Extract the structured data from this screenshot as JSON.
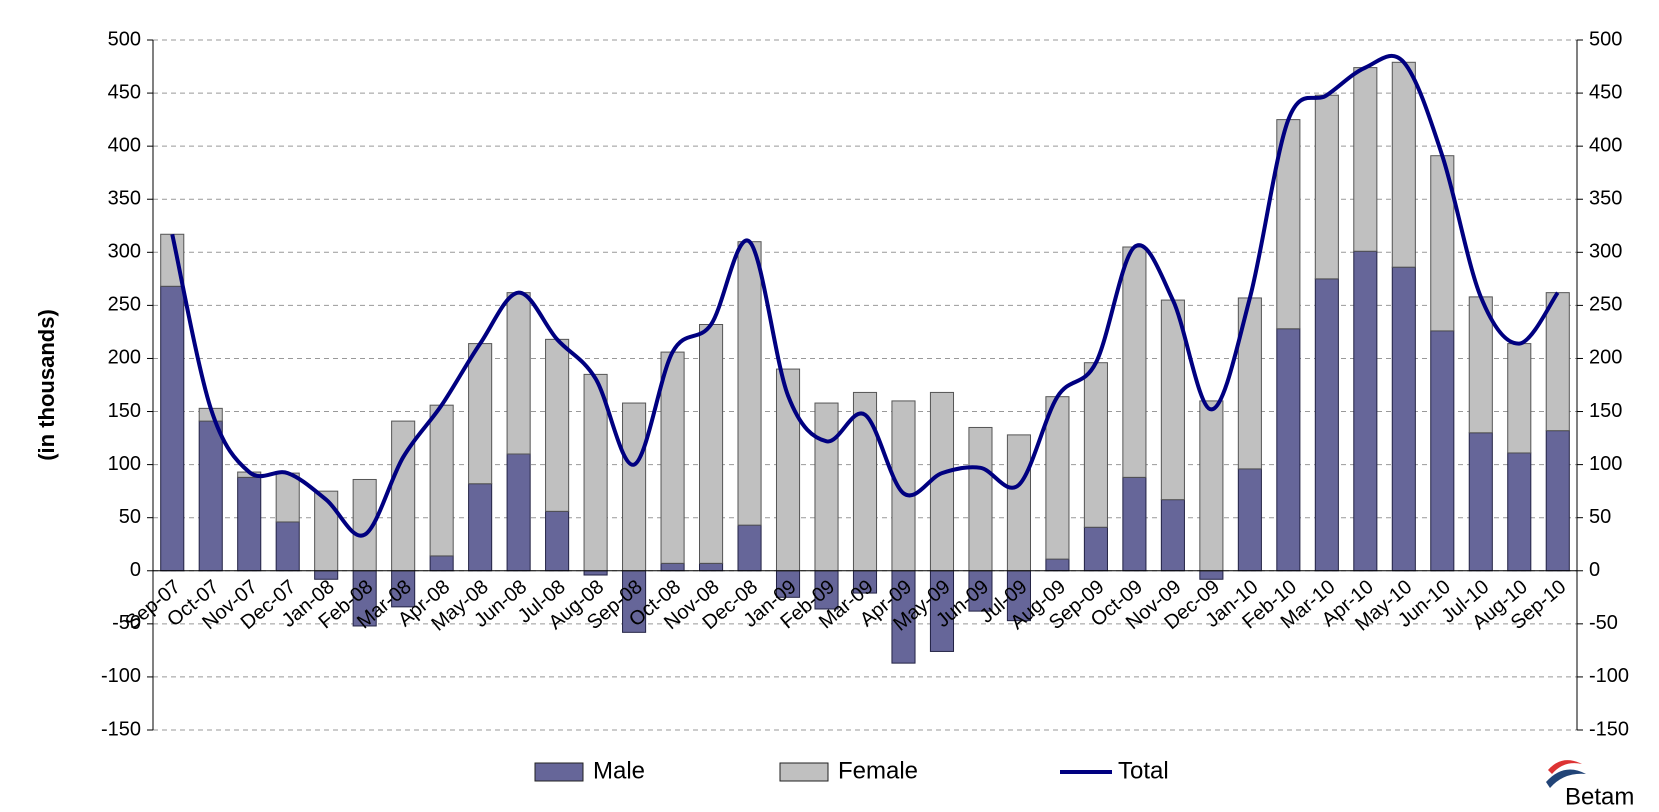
{
  "chart_data": {
    "type": "bar",
    "stacked": true,
    "y_label": "(in thousands)",
    "categories": [
      "Sep-07",
      "Oct-07",
      "Nov-07",
      "Dec-07",
      "Jan-08",
      "Feb-08",
      "Mar-08",
      "Apr-08",
      "May-08",
      "Jun-08",
      "Jul-08",
      "Aug-08",
      "Sep-08",
      "Oct-08",
      "Nov-08",
      "Dec-08",
      "Jan-09",
      "Feb-09",
      "Mar-09",
      "Apr-09",
      "May-09",
      "Jun-09",
      "Jul-09",
      "Aug-09",
      "Sep-09",
      "Oct-09",
      "Nov-09",
      "Dec-09",
      "Jan-10",
      "Feb-10",
      "Mar-10",
      "Apr-10",
      "May-10",
      "Jun-10",
      "Jul-10",
      "Aug-10",
      "Sep-10"
    ],
    "series": [
      {
        "name": "Male",
        "type": "bar",
        "color": "#666699",
        "values": [
          268,
          141,
          88,
          46,
          -8,
          -52,
          -34,
          14,
          82,
          110,
          56,
          -4,
          -58,
          7,
          7,
          43,
          -25,
          -36,
          -21,
          -87,
          -76,
          -38,
          -47,
          11,
          41,
          88,
          67,
          -8,
          96,
          228,
          275,
          301,
          286,
          226,
          130,
          111,
          132
        ]
      },
      {
        "name": "Female",
        "type": "bar",
        "color": "#c0c0c0",
        "values": [
          49,
          12,
          5,
          46,
          75,
          86,
          141,
          142,
          132,
          152,
          162,
          185,
          158,
          199,
          225,
          267,
          190,
          158,
          168,
          160,
          168,
          135,
          128,
          153,
          155,
          217,
          188,
          160,
          161,
          197,
          173,
          173,
          193,
          165,
          128,
          103,
          130
        ]
      },
      {
        "name": "Total",
        "type": "line",
        "color": "#000080",
        "values": [
          317,
          153,
          93,
          92,
          67,
          34,
          107,
          156,
          214,
          262,
          218,
          181,
          100,
          206,
          232,
          310,
          165,
          122,
          147,
          73,
          92,
          97,
          81,
          164,
          196,
          305,
          255,
          152,
          257,
          425,
          448,
          474,
          479,
          391,
          258,
          214,
          262
        ]
      }
    ],
    "ylim": [
      -150,
      500
    ],
    "yticks": [
      -150,
      -100,
      -50,
      0,
      50,
      100,
      150,
      200,
      250,
      300,
      350,
      400,
      450,
      500
    ],
    "y2lim": [
      -150,
      500
    ],
    "y2ticks": [
      -150,
      -100,
      -50,
      0,
      50,
      100,
      150,
      200,
      250,
      300,
      350,
      400,
      450,
      500
    ],
    "grid": true,
    "legend": "bottom",
    "logo": "Betam"
  }
}
